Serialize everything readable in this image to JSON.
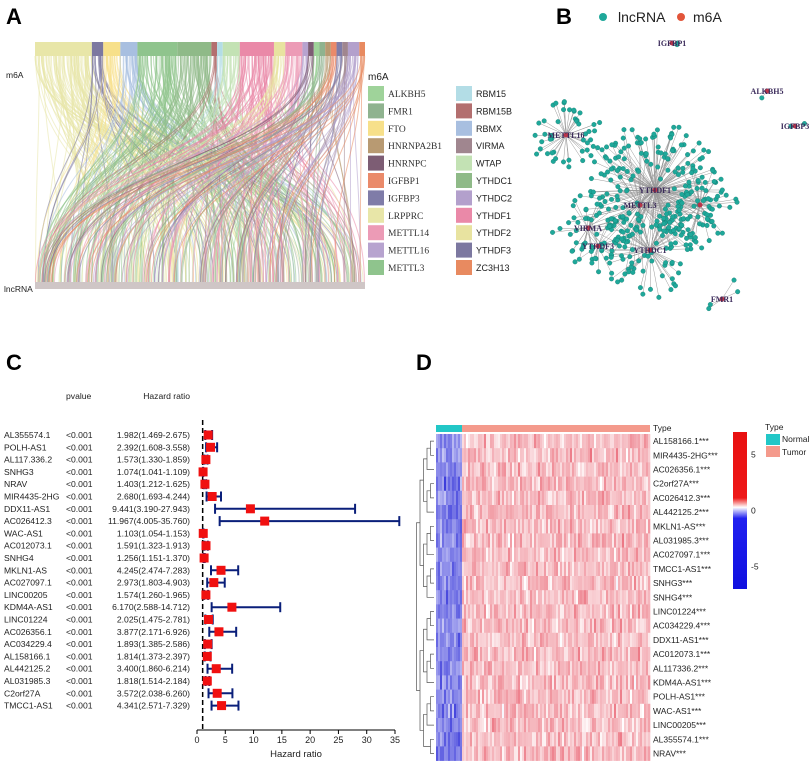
{
  "panels": {
    "a": "A",
    "b": "B",
    "c": "C",
    "d": "D"
  },
  "chart_data": [
    {
      "type": "alluvial",
      "panel": "A",
      "top_axis_label": "m6A",
      "bottom_axis_label": "lncRNA",
      "legend_title": "m6A",
      "legend": [
        {
          "name": "ALKBH5",
          "color": "#9fd39a"
        },
        {
          "name": "FMR1",
          "color": "#8fb38f"
        },
        {
          "name": "FTO",
          "color": "#f7e08a"
        },
        {
          "name": "HNRNPA2B1",
          "color": "#b89a72"
        },
        {
          "name": "HNRNPC",
          "color": "#7d5d74"
        },
        {
          "name": "IGFBP1",
          "color": "#ea8a6a"
        },
        {
          "name": "IGFBP3",
          "color": "#7f7ca8"
        },
        {
          "name": "LRPPRC",
          "color": "#e8e6a8"
        },
        {
          "name": "METTL14",
          "color": "#ec9bb6"
        },
        {
          "name": "METTL16",
          "color": "#b7a3cf"
        },
        {
          "name": "METTL3",
          "color": "#8fc48d"
        },
        {
          "name": "RBM15",
          "color": "#b3dde6"
        },
        {
          "name": "RBM15B",
          "color": "#b36f6f"
        },
        {
          "name": "RBMX",
          "color": "#a8bfe0"
        },
        {
          "name": "VIRMA",
          "color": "#a0868f"
        },
        {
          "name": "WTAP",
          "color": "#c3e2b4"
        },
        {
          "name": "YTHDC1",
          "color": "#8fba88"
        },
        {
          "name": "YTHDC2",
          "color": "#b3a0cc"
        },
        {
          "name": "YTHDF1",
          "color": "#ea89a8"
        },
        {
          "name": "YTHDF2",
          "color": "#e8e3a0"
        },
        {
          "name": "YTHDF3",
          "color": "#7c78a0"
        },
        {
          "name": "ZC3H13",
          "color": "#e88a60"
        }
      ]
    },
    {
      "type": "network",
      "panel": "B",
      "legend": [
        {
          "name": "lncRNA",
          "color": "#1fa89a"
        },
        {
          "name": "m6A",
          "color": "#e2553a"
        }
      ],
      "node_labels": [
        "IGFBP1",
        "ALKBH5",
        "IGFBP3",
        "METTL16",
        "YTHDF1",
        "VIRMA",
        "YTHDF3",
        "YTHDC1",
        "METTL3",
        "FMR1"
      ]
    },
    {
      "type": "forest",
      "panel": "C",
      "col_headers": {
        "pvalue": "pvalue",
        "hr": "Hazard ratio"
      },
      "xlabel": "Hazard ratio",
      "xlim": [
        0,
        35
      ],
      "xticks": [
        "0",
        "5",
        "10",
        "15",
        "20",
        "25",
        "30",
        "35"
      ],
      "reference_line": 1,
      "rows": [
        {
          "gene": "AL355574.1",
          "p": "<0.001",
          "hr_text": "1.982(1.469-2.675)",
          "hr": 1.982,
          "lo": 1.469,
          "hi": 2.675
        },
        {
          "gene": "POLH-AS1",
          "p": "<0.001",
          "hr_text": "2.392(1.608-3.558)",
          "hr": 2.392,
          "lo": 1.608,
          "hi": 3.558
        },
        {
          "gene": "AL117.336.2",
          "p": "<0.001",
          "hr_text": "1.573(1.330-1.859)",
          "hr": 1.573,
          "lo": 1.33,
          "hi": 1.859
        },
        {
          "gene": "SNHG3",
          "p": "<0.001",
          "hr_text": "1.074(1.041-1.109)",
          "hr": 1.074,
          "lo": 1.041,
          "hi": 1.109
        },
        {
          "gene": "NRAV",
          "p": "<0.001",
          "hr_text": "1.403(1.212-1.625)",
          "hr": 1.403,
          "lo": 1.212,
          "hi": 1.625
        },
        {
          "gene": "MIR4435-2HG",
          "p": "<0.001",
          "hr_text": "2.680(1.693-4.244)",
          "hr": 2.68,
          "lo": 1.693,
          "hi": 4.244
        },
        {
          "gene": "DDX11-AS1",
          "p": "<0.001",
          "hr_text": "9.441(3.190-27.943)",
          "hr": 9.441,
          "lo": 3.19,
          "hi": 27.943
        },
        {
          "gene": "AC026412.3",
          "p": "<0.001",
          "hr_text": "11.967(4.005-35.760)",
          "hr": 11.967,
          "lo": 4.005,
          "hi": 35.76
        },
        {
          "gene": "WAC-AS1",
          "p": "<0.001",
          "hr_text": "1.103(1.054-1.153)",
          "hr": 1.103,
          "lo": 1.054,
          "hi": 1.153
        },
        {
          "gene": "AC012073.1",
          "p": "<0.001",
          "hr_text": "1.591(1.323-1.913)",
          "hr": 1.591,
          "lo": 1.323,
          "hi": 1.913
        },
        {
          "gene": "SNHG4",
          "p": "<0.001",
          "hr_text": "1.256(1.151-1.370)",
          "hr": 1.256,
          "lo": 1.151,
          "hi": 1.37
        },
        {
          "gene": "MKLN1-AS",
          "p": "<0.001",
          "hr_text": "4.245(2.474-7.283)",
          "hr": 4.245,
          "lo": 2.474,
          "hi": 7.283
        },
        {
          "gene": "AC027097.1",
          "p": "<0.001",
          "hr_text": "2.973(1.803-4.903)",
          "hr": 2.973,
          "lo": 1.803,
          "hi": 4.903
        },
        {
          "gene": "LINC00205",
          "p": "<0.001",
          "hr_text": "1.574(1.260-1.965)",
          "hr": 1.574,
          "lo": 1.26,
          "hi": 1.965
        },
        {
          "gene": "KDM4A-AS1",
          "p": "<0.001",
          "hr_text": "6.170(2.588-14.712)",
          "hr": 6.17,
          "lo": 2.588,
          "hi": 14.712
        },
        {
          "gene": "LINC01224",
          "p": "<0.001",
          "hr_text": "2.025(1.475-2.781)",
          "hr": 2.025,
          "lo": 1.475,
          "hi": 2.781
        },
        {
          "gene": "AC026356.1",
          "p": "<0.001",
          "hr_text": "3.877(2.171-6.926)",
          "hr": 3.877,
          "lo": 2.171,
          "hi": 6.926
        },
        {
          "gene": "AC034229.4",
          "p": "<0.001",
          "hr_text": "1.893(1.385-2.586)",
          "hr": 1.893,
          "lo": 1.385,
          "hi": 2.586
        },
        {
          "gene": "AL158166.1",
          "p": "<0.001",
          "hr_text": "1.814(1.373-2.397)",
          "hr": 1.814,
          "lo": 1.373,
          "hi": 2.397
        },
        {
          "gene": "AL442125.2",
          "p": "<0.001",
          "hr_text": "3.400(1.860-6.214)",
          "hr": 3.4,
          "lo": 1.86,
          "hi": 6.214
        },
        {
          "gene": "AL031985.3",
          "p": "<0.001",
          "hr_text": "1.818(1.514-2.184)",
          "hr": 1.818,
          "lo": 1.514,
          "hi": 2.184
        },
        {
          "gene": "C2orf27A",
          "p": "<0.001",
          "hr_text": "3.572(2.038-6.260)",
          "hr": 3.572,
          "lo": 2.038,
          "hi": 6.26
        },
        {
          "gene": "TMCC1-AS1",
          "p": "<0.001",
          "hr_text": "4.341(2.571-7.329)",
          "hr": 4.341,
          "lo": 2.571,
          "hi": 7.329
        }
      ]
    },
    {
      "type": "heatmap",
      "panel": "D",
      "annotation_label": "Type",
      "legend_title": "Type",
      "groups": [
        {
          "name": "Normal",
          "color": "#22c7c7"
        },
        {
          "name": "Tumor",
          "color": "#f49a8c"
        }
      ],
      "colorbar": {
        "range": [
          -7,
          7
        ],
        "ticks": [
          "5",
          "0",
          "-5"
        ],
        "low": "#1010e0",
        "mid": "#ffffff",
        "high": "#e81010"
      },
      "rows": [
        "AL158166.1***",
        "MIR4435-2HG***",
        "AC026356.1***",
        "C2orf27A***",
        "AC026412.3***",
        "AL442125.2***",
        "MKLN1-AS***",
        "AL031985.3***",
        "AC027097.1***",
        "TMCC1-AS1***",
        "SNHG3***",
        "SNHG4***",
        "LINC01224***",
        "AC034229.4***",
        "DDX11-AS1***",
        "AC012073.1***",
        "AL117336.2***",
        "KDM4A-AS1***",
        "POLH-AS1***",
        "WAC-AS1***",
        "LINC00205***",
        "AL355574.1***",
        "NRAV***"
      ]
    }
  ]
}
